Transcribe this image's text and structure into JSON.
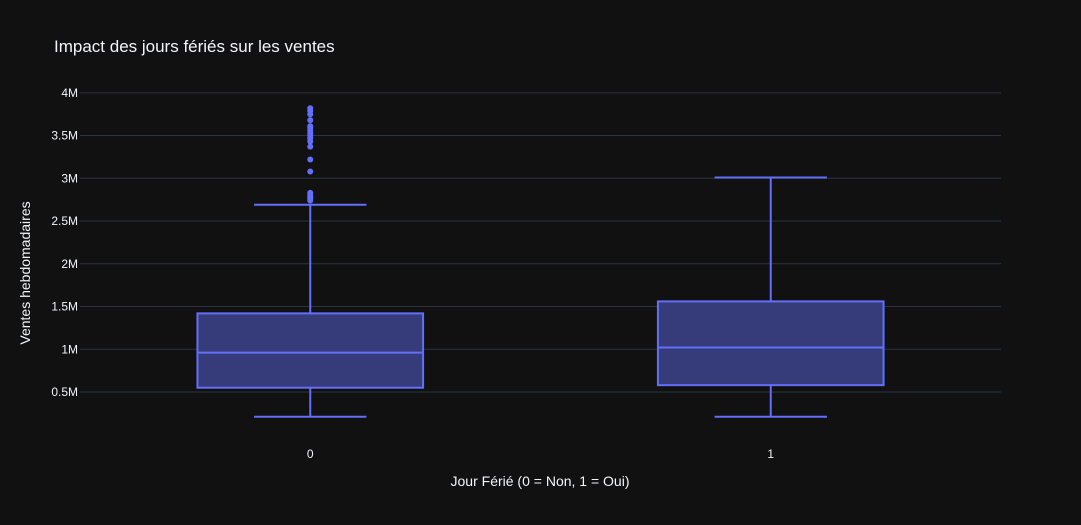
{
  "chart_data": {
    "type": "box",
    "title": "Impact des jours fériés sur les ventes",
    "xlabel": "Jour Férié (0 = Non, 1 = Oui)",
    "ylabel": "Ventes hebdomadaires",
    "categories": [
      "0",
      "1"
    ],
    "ylim": [
      -0.12,
      4.15
    ],
    "yticks": [
      {
        "value": 0.5,
        "label": "0.5M"
      },
      {
        "value": 1.0,
        "label": "1M"
      },
      {
        "value": 1.5,
        "label": "1.5M"
      },
      {
        "value": 2.0,
        "label": "2M"
      },
      {
        "value": 2.5,
        "label": "2.5M"
      },
      {
        "value": 3.0,
        "label": "3M"
      },
      {
        "value": 3.5,
        "label": "3.5M"
      },
      {
        "value": 4.0,
        "label": "4M"
      }
    ],
    "grid": true,
    "colors": {
      "background": "#111111",
      "grid": "#283442",
      "box_line": "#636efa",
      "box_fill": "#363c7a",
      "text": "#f2f5fa"
    },
    "boxes": [
      {
        "category": "0",
        "min": 0.21,
        "q1": 0.55,
        "median": 0.96,
        "q3": 1.42,
        "max": 2.69,
        "outliers": [
          2.74,
          2.76,
          2.78,
          2.8,
          2.83,
          3.08,
          3.22,
          3.37,
          3.43,
          3.47,
          3.5,
          3.53,
          3.56,
          3.59,
          3.61,
          3.68,
          3.75,
          3.79,
          3.82
        ]
      },
      {
        "category": "1",
        "min": 0.21,
        "q1": 0.58,
        "median": 1.02,
        "q3": 1.56,
        "max": 3.01,
        "outliers": []
      }
    ]
  }
}
